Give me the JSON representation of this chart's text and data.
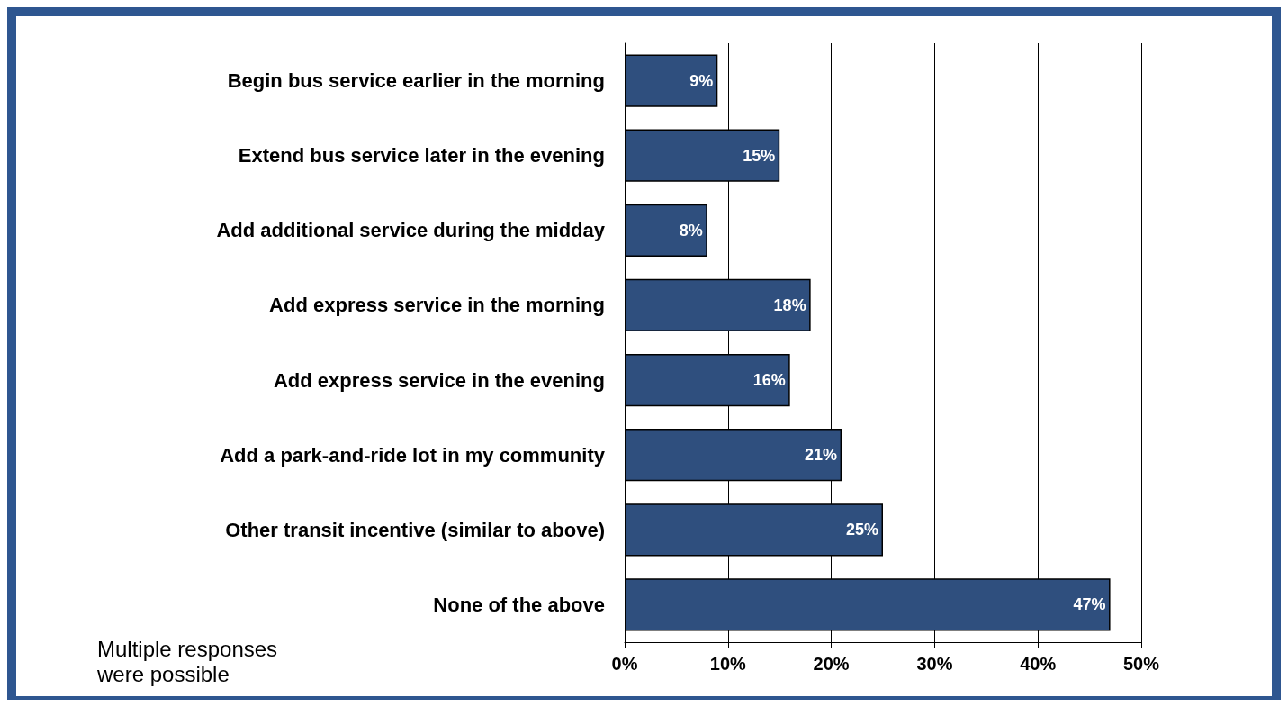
{
  "chart_data": {
    "type": "bar",
    "orientation": "horizontal",
    "categories": [
      "Begin bus service earlier in the morning",
      "Extend bus service later in the evening",
      "Add additional service during the midday",
      "Add express service in the morning",
      "Add express service in the evening",
      "Add a park-and-ride lot in my community",
      "Other transit incentive (similar to above)",
      "None of the above"
    ],
    "values": [
      9,
      15,
      8,
      18,
      16,
      21,
      25,
      47
    ],
    "value_labels": [
      "9%",
      "15%",
      "8%",
      "18%",
      "16%",
      "21%",
      "25%",
      "47%"
    ],
    "color": "#2f4f7e",
    "xlim": [
      0,
      50
    ],
    "xticks": [
      {
        "value": 0,
        "label": "0%"
      },
      {
        "value": 10,
        "label": "10%"
      },
      {
        "value": 20,
        "label": "20%"
      },
      {
        "value": 30,
        "label": "30%"
      },
      {
        "value": 40,
        "label": "40%"
      },
      {
        "value": 50,
        "label": "50%"
      }
    ],
    "grid": "x",
    "annotations": [
      "Multiple responses were possible"
    ]
  }
}
